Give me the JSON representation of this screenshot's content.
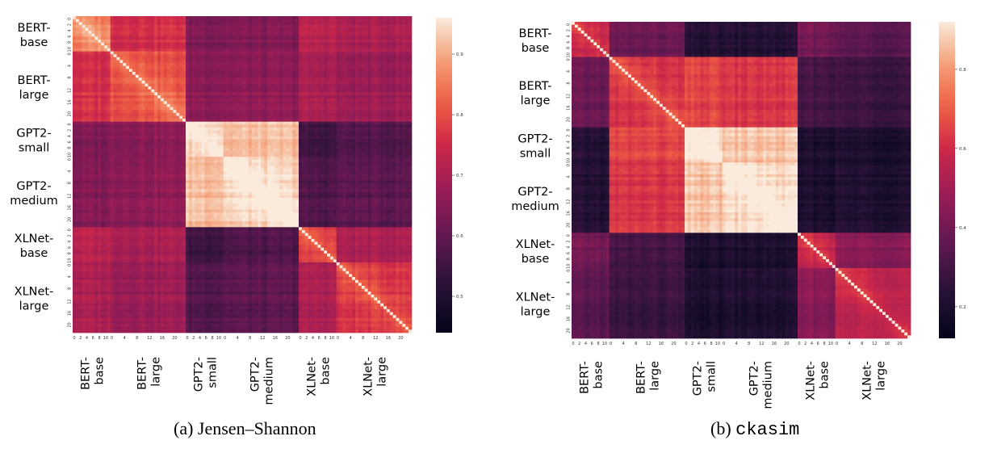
{
  "chart_data": [
    {
      "type": "heatmap",
      "caption_prefix": "(a)",
      "caption_name": "Jensen–Shannon",
      "models": [
        {
          "label": [
            "BERT-",
            "base"
          ],
          "layers": 12,
          "ticks": [
            "0",
            "2",
            "4",
            "6",
            "8",
            "10"
          ]
        },
        {
          "label": [
            "BERT-",
            "large"
          ],
          "layers": 24,
          "ticks": [
            "0",
            "4",
            "8",
            "12",
            "16",
            "20"
          ]
        },
        {
          "label": [
            "GPT2-",
            "small"
          ],
          "layers": 12,
          "ticks": [
            "0",
            "2",
            "4",
            "6",
            "8",
            "10"
          ]
        },
        {
          "label": [
            "GPT2-",
            "medium"
          ],
          "layers": 24,
          "ticks": [
            "0",
            "4",
            "8",
            "12",
            "16",
            "20"
          ]
        },
        {
          "label": [
            "XLNet-",
            "base"
          ],
          "layers": 12,
          "ticks": [
            "0",
            "2",
            "4",
            "6",
            "8",
            "10"
          ]
        },
        {
          "label": [
            "XLNet-",
            "large"
          ],
          "layers": 24,
          "ticks": [
            "0",
            "4",
            "8",
            "12",
            "16",
            "20"
          ]
        }
      ],
      "colorbar": {
        "ticks": [
          "0.9",
          "0.8",
          "0.7",
          "0.6",
          "0.5"
        ],
        "tick_values": [
          0.9,
          0.8,
          0.7,
          0.6,
          0.5
        ],
        "range": [
          0.44,
          0.96
        ]
      },
      "block_similarity": [
        [
          0.84,
          0.76,
          0.64,
          0.64,
          0.72,
          0.7
        ],
        [
          0.76,
          0.8,
          0.66,
          0.66,
          0.7,
          0.68
        ],
        [
          0.64,
          0.66,
          0.93,
          0.92,
          0.55,
          0.58
        ],
        [
          0.64,
          0.66,
          0.92,
          0.93,
          0.57,
          0.59
        ],
        [
          0.72,
          0.7,
          0.55,
          0.57,
          0.76,
          0.7
        ],
        [
          0.7,
          0.68,
          0.58,
          0.59,
          0.7,
          0.76
        ]
      ]
    },
    {
      "type": "heatmap",
      "caption_prefix": "(b)",
      "caption_name": "ckasim",
      "models": [
        {
          "label": [
            "BERT-",
            "base"
          ],
          "layers": 12,
          "ticks": [
            "0",
            "2",
            "4",
            "6",
            "8",
            "10"
          ]
        },
        {
          "label": [
            "BERT-",
            "large"
          ],
          "layers": 24,
          "ticks": [
            "0",
            "4",
            "8",
            "12",
            "16",
            "20"
          ]
        },
        {
          "label": [
            "GPT2-",
            "small"
          ],
          "layers": 12,
          "ticks": [
            "0",
            "2",
            "4",
            "6",
            "8",
            "10"
          ]
        },
        {
          "label": [
            "GPT2-",
            "medium"
          ],
          "layers": 24,
          "ticks": [
            "0",
            "4",
            "8",
            "12",
            "16",
            "20"
          ]
        },
        {
          "label": [
            "XLNet-",
            "base"
          ],
          "layers": 12,
          "ticks": [
            "0",
            "2",
            "4",
            "6",
            "8",
            "10"
          ]
        },
        {
          "label": [
            "XLNet-",
            "large"
          ],
          "layers": 24,
          "ticks": [
            "0",
            "4",
            "8",
            "12",
            "16",
            "20"
          ]
        }
      ],
      "colorbar": {
        "ticks": [
          "0.8",
          "0.6",
          "0.4",
          "0.2"
        ],
        "tick_values": [
          0.8,
          0.6,
          0.4,
          0.2
        ],
        "range": [
          0.12,
          0.92
        ]
      },
      "block_similarity": [
        [
          0.55,
          0.38,
          0.22,
          0.22,
          0.4,
          0.35
        ],
        [
          0.38,
          0.6,
          0.65,
          0.62,
          0.3,
          0.28
        ],
        [
          0.22,
          0.65,
          0.88,
          0.86,
          0.2,
          0.2
        ],
        [
          0.22,
          0.62,
          0.86,
          0.88,
          0.2,
          0.21
        ],
        [
          0.4,
          0.3,
          0.2,
          0.2,
          0.55,
          0.45
        ],
        [
          0.35,
          0.28,
          0.2,
          0.21,
          0.45,
          0.55
        ]
      ]
    }
  ]
}
